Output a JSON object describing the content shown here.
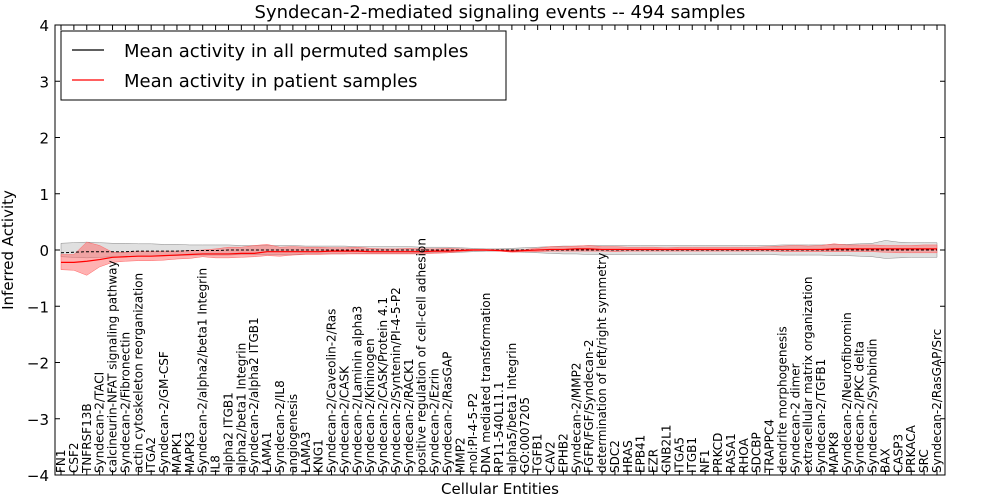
{
  "chart_data": {
    "type": "line",
    "title": "Syndecan-2-mediated signaling events -- 494 samples",
    "xlabel": "Cellular Entities",
    "ylabel": "Inferred Activity",
    "ylim": [
      -4,
      4
    ],
    "yticks": [
      -4,
      -3,
      -2,
      -1,
      0,
      1,
      2,
      3,
      4
    ],
    "ytick_labels": [
      "−4",
      "−3",
      "−2",
      "−1",
      "0",
      "1",
      "2",
      "3",
      "4"
    ],
    "grid": false,
    "legend_position": "top-left",
    "categories": [
      "FN1",
      "CSF2",
      "TNFRSF13B",
      "Syndecan-2/TACI",
      "calcineurin-NFAT signaling pathway",
      "Syndecan-2/Fibronectin",
      "actin cytoskeleton reorganization",
      "ITGA2",
      "Syndecan-2/GM-CSF",
      "MAPK1",
      "MAPK3",
      "Syndecan-2/alpha2/beta1 Integrin",
      "IL8",
      "alpha2 ITGB1",
      "alpha2/beta1 Integrin",
      "Syndecan-2/alpha2 ITGB1",
      "LAMA1",
      "Syndecan-2/IL8",
      "angiogenesis",
      "LAMA3",
      "KNG1",
      "Syndecan-2/Caveolin-2/Ras",
      "Syndecan-2/CASK",
      "Syndecan-2/Laminin alpha3",
      "Syndecan-2/Kininogen",
      "Syndecan-2/CASK/Protein 4.1",
      "Syndecan-2/Syntenin/PI-4-5-P2",
      "Syndecan-2/RACK1",
      "positive regulation of cell-cell adhesion",
      "Syndecan-2/Ezrin",
      "Syndecan-2/RasGAP",
      "MMP2",
      "mol:PI-4-5-P2",
      "DNA mediated transformation",
      "RP11-540L11.1",
      "alpha5/beta1 Integrin",
      "GO:0007205",
      "TGFB1",
      "CAV2",
      "EPHB2",
      "Syndecan-2/MMP2",
      "FGFR/FGF/Syndecan-2",
      "determination of left/right symmetry",
      "SDC2",
      "HRAS",
      "EPB41",
      "EZR",
      "GNB2L1",
      "ITGA5",
      "ITGB1",
      "NF1",
      "PRKCD",
      "RASA1",
      "RHOA",
      "SDCBP",
      "TRAPPC4",
      "dendrite morphogenesis",
      "Syndecan-2 dimer",
      "extracellular matrix organization",
      "Syndecan-2/TGFB1",
      "MAPK8",
      "Syndecan-2/Neurofibromin",
      "Syndecan-2/PKC delta",
      "Syndecan-2/Synbindin",
      "BAX",
      "CASP3",
      "PRKACA",
      "SRC",
      "Syndecan-2/RasGAP/Src"
    ],
    "series": [
      {
        "name": "Mean activity in all permuted samples",
        "color": "#000000",
        "values": [
          -0.05,
          -0.04,
          -0.03,
          -0.03,
          -0.03,
          -0.03,
          -0.02,
          -0.02,
          -0.02,
          -0.02,
          -0.01,
          -0.01,
          -0.01,
          0.0,
          0.0,
          0.0,
          0.0,
          0.0,
          0.0,
          0.0,
          0.0,
          0.0,
          0.0,
          0.0,
          0.0,
          0.0,
          0.0,
          0.0,
          0.0,
          0.0,
          0.0,
          0.0,
          0.0,
          0.0,
          0.0,
          0.0,
          0.0,
          0.0,
          0.0,
          0.0,
          0.0,
          0.0,
          0.0,
          0.0,
          0.0,
          0.0,
          0.0,
          0.0,
          0.0,
          0.0,
          0.0,
          0.0,
          0.0,
          0.0,
          0.0,
          0.0,
          0.0,
          0.0,
          0.0,
          0.0,
          0.0,
          0.0,
          0.0,
          0.0,
          0.0,
          0.0,
          0.0,
          0.0,
          0.0
        ],
        "band_lower": [
          -0.12,
          -0.13,
          -0.14,
          -0.13,
          -0.12,
          -0.12,
          -0.11,
          -0.11,
          -0.1,
          -0.1,
          -0.09,
          -0.09,
          -0.09,
          -0.09,
          -0.08,
          -0.08,
          -0.08,
          -0.08,
          -0.08,
          -0.07,
          -0.07,
          -0.07,
          -0.07,
          -0.06,
          -0.06,
          -0.06,
          -0.06,
          -0.06,
          -0.05,
          -0.05,
          -0.05,
          -0.04,
          -0.03,
          -0.02,
          -0.02,
          -0.03,
          -0.04,
          -0.05,
          -0.06,
          -0.07,
          -0.07,
          -0.08,
          -0.08,
          -0.08,
          -0.08,
          -0.08,
          -0.08,
          -0.08,
          -0.08,
          -0.08,
          -0.08,
          -0.08,
          -0.08,
          -0.08,
          -0.08,
          -0.08,
          -0.09,
          -0.09,
          -0.09,
          -0.09,
          -0.1,
          -0.1,
          -0.11,
          -0.12,
          -0.15,
          -0.14,
          -0.13,
          -0.13,
          -0.13
        ],
        "band_upper": [
          0.12,
          0.13,
          0.14,
          0.13,
          0.12,
          0.12,
          0.11,
          0.11,
          0.1,
          0.1,
          0.09,
          0.09,
          0.09,
          0.09,
          0.08,
          0.08,
          0.08,
          0.08,
          0.08,
          0.07,
          0.07,
          0.07,
          0.07,
          0.06,
          0.06,
          0.06,
          0.06,
          0.06,
          0.05,
          0.05,
          0.05,
          0.04,
          0.03,
          0.02,
          0.02,
          0.03,
          0.04,
          0.05,
          0.06,
          0.07,
          0.07,
          0.08,
          0.08,
          0.08,
          0.08,
          0.08,
          0.08,
          0.08,
          0.08,
          0.08,
          0.08,
          0.08,
          0.08,
          0.08,
          0.08,
          0.08,
          0.09,
          0.09,
          0.09,
          0.09,
          0.1,
          0.1,
          0.11,
          0.12,
          0.17,
          0.14,
          0.13,
          0.13,
          0.13
        ]
      },
      {
        "name": "Mean activity in patient samples",
        "color": "#ff0000",
        "band_color": "#ff6666",
        "values": [
          -0.22,
          -0.22,
          -0.2,
          -0.17,
          -0.13,
          -0.12,
          -0.11,
          -0.11,
          -0.1,
          -0.09,
          -0.08,
          -0.07,
          -0.07,
          -0.07,
          -0.06,
          -0.06,
          -0.03,
          -0.03,
          -0.03,
          -0.03,
          -0.03,
          -0.02,
          -0.02,
          -0.02,
          -0.03,
          -0.03,
          -0.03,
          -0.03,
          -0.03,
          -0.02,
          -0.02,
          -0.01,
          0.0,
          0.0,
          -0.01,
          -0.02,
          -0.01,
          0.0,
          0.01,
          0.01,
          0.02,
          0.02,
          0.01,
          0.01,
          0.01,
          0.01,
          0.01,
          0.01,
          0.01,
          0.01,
          0.01,
          0.01,
          0.01,
          0.01,
          0.01,
          0.01,
          0.01,
          0.01,
          0.01,
          0.01,
          0.02,
          0.02,
          0.02,
          0.02,
          0.02,
          0.02,
          0.02,
          0.02,
          0.02
        ],
        "band_lower": [
          -0.35,
          -0.36,
          -0.45,
          -0.3,
          -0.22,
          -0.2,
          -0.19,
          -0.19,
          -0.18,
          -0.16,
          -0.15,
          -0.12,
          -0.14,
          -0.14,
          -0.13,
          -0.12,
          -0.1,
          -0.11,
          -0.09,
          -0.08,
          -0.08,
          -0.07,
          -0.07,
          -0.07,
          -0.07,
          -0.07,
          -0.07,
          -0.07,
          -0.07,
          -0.06,
          -0.05,
          -0.03,
          -0.01,
          -0.01,
          -0.02,
          -0.04,
          -0.03,
          -0.03,
          -0.02,
          -0.02,
          -0.02,
          -0.02,
          -0.02,
          -0.03,
          -0.02,
          -0.02,
          -0.02,
          -0.02,
          -0.02,
          -0.02,
          -0.02,
          -0.02,
          -0.02,
          -0.02,
          -0.02,
          -0.02,
          -0.03,
          -0.03,
          -0.03,
          -0.03,
          -0.03,
          -0.03,
          -0.03,
          -0.03,
          -0.04,
          -0.05,
          -0.05,
          -0.05,
          -0.05
        ],
        "band_upper": [
          -0.08,
          -0.08,
          0.14,
          0.08,
          -0.04,
          -0.04,
          -0.03,
          -0.03,
          -0.02,
          -0.02,
          -0.01,
          0.0,
          0.02,
          0.05,
          0.05,
          0.08,
          0.1,
          0.05,
          0.06,
          0.05,
          0.05,
          0.04,
          0.04,
          0.05,
          0.03,
          0.02,
          0.02,
          0.03,
          0.02,
          0.02,
          0.03,
          0.02,
          0.01,
          0.01,
          0.01,
          0.0,
          0.01,
          0.03,
          0.06,
          0.06,
          0.07,
          0.08,
          0.06,
          0.06,
          0.05,
          0.05,
          0.05,
          0.04,
          0.05,
          0.05,
          0.05,
          0.05,
          0.05,
          0.05,
          0.05,
          0.06,
          0.07,
          0.08,
          0.07,
          0.08,
          0.11,
          0.09,
          0.09,
          0.09,
          0.08,
          0.08,
          0.08,
          0.09,
          0.09
        ]
      }
    ]
  }
}
